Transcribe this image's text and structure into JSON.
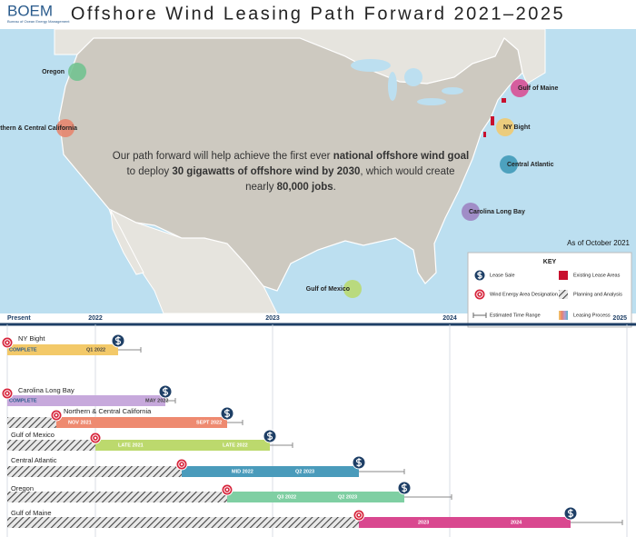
{
  "header": {
    "logo": "BOEM",
    "logo_subtitle": "Bureau of Ocean Energy Management",
    "title": "Offshore Wind Leasing Path Forward 2021–2025"
  },
  "map": {
    "regions": [
      {
        "label": "Oregon",
        "color": "#6cc28d"
      },
      {
        "label": "Northern & Central California",
        "color": "#e8826a"
      },
      {
        "label": "Gulf of Maine",
        "color": "#d9488f"
      },
      {
        "label": "NY Bight",
        "color": "#f3c969"
      },
      {
        "label": "Central Atlantic",
        "color": "#3a97b5"
      },
      {
        "label": "Carolina Long Bay",
        "color": "#9b7fc0"
      },
      {
        "label": "Gulf of Mexico",
        "color": "#b9d96a"
      }
    ],
    "message": [
      {
        "text": "Our path forward will help achieve the first ever "
      },
      {
        "text": "national offshore wind goal",
        "bold": true
      },
      {
        "text": "to deploy "
      },
      {
        "text": "30 gigawatts of offshore wind by 2030",
        "bold": true
      },
      {
        "text": ", which would create"
      },
      {
        "text": "nearly "
      },
      {
        "text": "80,000 jobs",
        "bold": true
      },
      {
        "text": "."
      }
    ],
    "as_of": "As of October 2021"
  },
  "key": {
    "title": "KEY",
    "items": [
      "Lease Sale",
      "Existing Lease Areas",
      "Wind Energy Area Designation",
      "Planning and Analysis",
      "Estimated Time Range",
      "Leasing Process"
    ]
  },
  "timeline": {
    "axis": [
      "Present",
      "2022",
      "2023",
      "2024",
      "2025"
    ],
    "rows": [
      {
        "label": "NY Bight",
        "start_label": "COMPLETE",
        "end_label": "Q1 2022",
        "color": "#f3c969"
      },
      {
        "label": "Carolina Long Bay",
        "start_label": "COMPLETE",
        "end_label": "MAY 2022",
        "color": "#c7a9dc"
      },
      {
        "label": "Northern & Central California",
        "start_label": "NOV 2021",
        "end_label": "SEPT 2022",
        "color": "#ee8a70"
      },
      {
        "label": "Gulf of Mexico",
        "start_label": "LATE 2021",
        "end_label": "LATE 2022",
        "color": "#bcd96d"
      },
      {
        "label": "Central Atlantic",
        "start_label": "MID 2022",
        "end_label": "Q2 2023",
        "color": "#4a9bbb"
      },
      {
        "label": "Oregon",
        "start_label": "Q3 2022",
        "end_label": "Q2 2023",
        "color": "#7fcfa3"
      },
      {
        "label": "Gulf of Maine",
        "start_label": "2023",
        "end_label": "2024",
        "color": "#d9488f"
      }
    ]
  }
}
